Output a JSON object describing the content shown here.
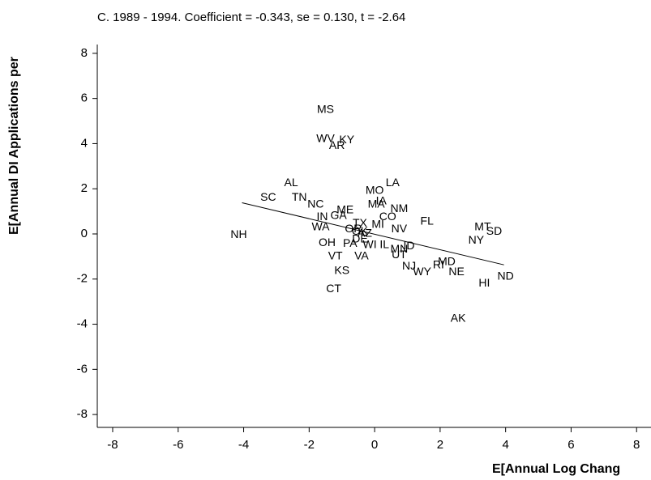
{
  "chart_data": {
    "type": "scatter",
    "title": "C. 1989 - 1994. Coefficient = -0.343, se = 0.130, t = -2.64",
    "x_label": "E[Annual Log Chang",
    "y_label": "E[Annual DI Applications per",
    "labels": [
      "MS",
      "WV",
      "KY",
      "AR",
      "AL",
      "SC",
      "TN",
      "NC",
      "LA",
      "MO",
      "IA",
      "MA",
      "NM",
      "CO",
      "ME",
      "GA",
      "IN",
      "TX",
      "MI",
      "FL",
      "NV",
      "WA",
      "OR",
      "OK",
      "AZ",
      "DE",
      "OH",
      "PA",
      "WI",
      "IL",
      "VA",
      "VT",
      "MN",
      "ID",
      "UT",
      "KS",
      "NJ",
      "WY",
      "RI",
      "MD",
      "NE",
      "CT",
      "HI",
      "ND",
      "AK",
      "MT",
      "SD",
      "NY",
      "NH"
    ],
    "x": [
      -1.5,
      -1.5,
      -0.85,
      -1.15,
      -2.55,
      -3.25,
      -2.3,
      -1.8,
      0.55,
      0,
      0.2,
      0.05,
      0.75,
      0.4,
      -0.9,
      -1.1,
      -1.6,
      -0.45,
      0.1,
      1.6,
      0.75,
      -1.65,
      -0.65,
      -0.45,
      -0.3,
      -0.45,
      -1.45,
      -0.75,
      -0.15,
      0.3,
      -0.4,
      -1.2,
      0.75,
      1.05,
      0.75,
      -1,
      1.05,
      1.45,
      1.95,
      2.2,
      2.5,
      -1.25,
      3.35,
      4,
      2.55,
      3.3,
      3.65,
      3.1,
      -4.15
    ],
    "values": [
      5.5,
      4.2,
      4.15,
      3.9,
      2.25,
      1.6,
      1.6,
      1.3,
      2.25,
      1.9,
      1.45,
      1.3,
      1.1,
      0.75,
      1.05,
      0.8,
      0.75,
      0.45,
      0.4,
      0.55,
      0.2,
      0.3,
      0.2,
      0.1,
      0,
      -0.25,
      -0.4,
      -0.45,
      -0.5,
      -0.5,
      -1.0,
      -1.0,
      -0.7,
      -0.55,
      -0.95,
      -1.65,
      -1.45,
      -1.7,
      -1.4,
      -1.25,
      -1.7,
      -2.45,
      -2.2,
      -1.9,
      -3.75,
      0.3,
      0.1,
      -0.3,
      -0.05
    ],
    "fit_line": {
      "x": [
        -4.05,
        3.95
      ],
      "y": [
        1.38,
        -1.37
      ]
    },
    "xlim": [
      -8.47,
      8.44
    ],
    "ylim": [
      -8.57,
      8.39
    ],
    "xticks": [
      -8,
      -6,
      -4,
      -2,
      0,
      2,
      4,
      6,
      8
    ],
    "yticks": [
      -8,
      -6,
      -4,
      -2,
      0,
      2,
      4,
      6,
      8
    ],
    "color": "#000000"
  }
}
